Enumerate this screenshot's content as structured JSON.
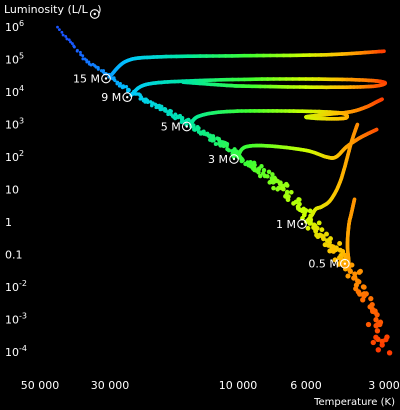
{
  "chart_data": {
    "type": "scatter",
    "title": "",
    "xlabel": "Temperature (K)",
    "ylabel_prefix": "Luminosity (L/L",
    "ylabel_suffix": ")",
    "x_scale": "log",
    "x_reversed": true,
    "xlim": [
      50000,
      2900
    ],
    "y_scale": "log",
    "ylim": [
      5e-05,
      2000000
    ],
    "x_ticks": [
      {
        "value": 50000,
        "label": "50 000"
      },
      {
        "value": 30000,
        "label": "30 000"
      },
      {
        "value": 10000,
        "label": "10 000"
      },
      {
        "value": 6000,
        "label": "6 000"
      },
      {
        "value": 3000,
        "label": "3 000"
      }
    ],
    "y_ticks": [
      {
        "value": 1000000,
        "base": "10",
        "exp": "6"
      },
      {
        "value": 100000,
        "base": "10",
        "exp": "5"
      },
      {
        "value": 10000,
        "base": "10",
        "exp": "4"
      },
      {
        "value": 1000,
        "base": "10",
        "exp": "3"
      },
      {
        "value": 100,
        "base": "10",
        "exp": "2"
      },
      {
        "value": 10,
        "base": "10",
        "exp": ""
      },
      {
        "value": 1,
        "base": "1",
        "exp": ""
      },
      {
        "value": 0.1,
        "base": "0.1",
        "exp": ""
      },
      {
        "value": 0.01,
        "base": "10",
        "exp": "-2"
      },
      {
        "value": 0.001,
        "base": "10",
        "exp": "-3"
      },
      {
        "value": 0.0001,
        "base": "10",
        "exp": "-4"
      }
    ],
    "color_scale": [
      {
        "temperature": 40000,
        "color": "#1a55ff"
      },
      {
        "temperature": 25000,
        "color": "#00c8ff"
      },
      {
        "temperature": 15000,
        "color": "#00e8a0"
      },
      {
        "temperature": 9000,
        "color": "#40ff30"
      },
      {
        "temperature": 6000,
        "color": "#ccff00"
      },
      {
        "temperature": 4500,
        "color": "#ffc000"
      },
      {
        "temperature": 3500,
        "color": "#ff7000"
      },
      {
        "temperature": 3000,
        "color": "#ff3a00"
      }
    ],
    "main_sequence": [
      {
        "temperature": 44000,
        "luminosity": 1000000
      },
      {
        "temperature": 36000,
        "luminosity": 100000
      },
      {
        "temperature": 30000,
        "luminosity": 30000
      },
      {
        "temperature": 25000,
        "luminosity": 10000
      },
      {
        "temperature": 19000,
        "luminosity": 3000
      },
      {
        "temperature": 15000,
        "luminosity": 1000
      },
      {
        "temperature": 11000,
        "luminosity": 200
      },
      {
        "temperature": 8500,
        "luminosity": 40
      },
      {
        "temperature": 7000,
        "luminosity": 10
      },
      {
        "temperature": 6000,
        "luminosity": 1.5
      },
      {
        "temperature": 5500,
        "luminosity": 0.6
      },
      {
        "temperature": 5000,
        "luminosity": 0.3
      },
      {
        "temperature": 4500,
        "luminosity": 0.1
      },
      {
        "temperature": 4000,
        "luminosity": 0.03
      },
      {
        "temperature": 3600,
        "luminosity": 0.008
      },
      {
        "temperature": 3400,
        "luminosity": 0.002
      },
      {
        "temperature": 3200,
        "luminosity": 0.0005
      },
      {
        "temperature": 3000,
        "luminosity": 0.0001
      }
    ],
    "series": [
      {
        "mass_value": "15",
        "points": [
          {
            "temperature": 30000,
            "luminosity": 30000
          },
          {
            "temperature": 26000,
            "luminosity": 90000
          },
          {
            "temperature": 20000,
            "luminosity": 120000
          },
          {
            "temperature": 10000,
            "luminosity": 130000
          },
          {
            "temperature": 5000,
            "luminosity": 140000
          },
          {
            "temperature": 3000,
            "luminosity": 180000
          }
        ]
      },
      {
        "mass_value": "9",
        "points": [
          {
            "temperature": 25000,
            "luminosity": 8000
          },
          {
            "temperature": 22000,
            "luminosity": 17000
          },
          {
            "temperature": 15000,
            "luminosity": 22000
          },
          {
            "temperature": 8000,
            "luminosity": 25000
          },
          {
            "temperature": 4000,
            "luminosity": 24000
          },
          {
            "temperature": 3000,
            "luminosity": 20000
          },
          {
            "temperature": 3300,
            "luminosity": 15000
          },
          {
            "temperature": 5000,
            "luminosity": 14000
          },
          {
            "temperature": 9000,
            "luminosity": 15000
          },
          {
            "temperature": 11000,
            "luminosity": 16000
          },
          {
            "temperature": 16000,
            "luminosity": 20000
          }
        ]
      },
      {
        "mass_value": "5",
        "points": [
          {
            "temperature": 15000,
            "luminosity": 1000
          },
          {
            "temperature": 14000,
            "luminosity": 1800
          },
          {
            "temperature": 11000,
            "luminosity": 2500
          },
          {
            "temperature": 7000,
            "luminosity": 2600
          },
          {
            "temperature": 4500,
            "luminosity": 2300
          },
          {
            "temperature": 4200,
            "luminosity": 1600
          },
          {
            "temperature": 5000,
            "luminosity": 1500
          },
          {
            "temperature": 6000,
            "luminosity": 1700
          },
          {
            "temperature": 4800,
            "luminosity": 2100
          },
          {
            "temperature": 4000,
            "luminosity": 2500
          },
          {
            "temperature": 3500,
            "luminosity": 3500
          },
          {
            "temperature": 3200,
            "luminosity": 5000
          },
          {
            "temperature": 3050,
            "luminosity": 6000
          }
        ]
      },
      {
        "mass_value": "3",
        "points": [
          {
            "temperature": 10000,
            "luminosity": 100
          },
          {
            "temperature": 9500,
            "luminosity": 200
          },
          {
            "temperature": 8000,
            "luminosity": 220
          },
          {
            "temperature": 6000,
            "luminosity": 160
          },
          {
            "temperature": 5000,
            "luminosity": 100
          },
          {
            "temperature": 4600,
            "luminosity": 100
          },
          {
            "temperature": 4200,
            "luminosity": 200
          },
          {
            "temperature": 3800,
            "luminosity": 350
          },
          {
            "temperature": 3500,
            "luminosity": 500
          },
          {
            "temperature": 3200,
            "luminosity": 700
          }
        ]
      },
      {
        "mass_value": "1",
        "points": [
          {
            "temperature": 6000,
            "luminosity": 1
          },
          {
            "temperature": 5700,
            "luminosity": 1.6
          },
          {
            "temperature": 5500,
            "luminosity": 2.5
          },
          {
            "temperature": 5200,
            "luminosity": 3
          },
          {
            "temperature": 4800,
            "luminosity": 5
          },
          {
            "temperature": 4400,
            "luminosity": 20
          },
          {
            "temperature": 4000,
            "luminosity": 300
          },
          {
            "temperature": 3800,
            "luminosity": 1000
          }
        ]
      },
      {
        "mass_value": "0.5",
        "points": [
          {
            "temperature": 4100,
            "luminosity": 0.06
          },
          {
            "temperature": 4150,
            "luminosity": 0.2
          },
          {
            "temperature": 4100,
            "luminosity": 0.8
          },
          {
            "temperature": 4000,
            "luminosity": 2
          },
          {
            "temperature": 3900,
            "luminosity": 5
          }
        ]
      }
    ],
    "mass_unit": "M"
  }
}
